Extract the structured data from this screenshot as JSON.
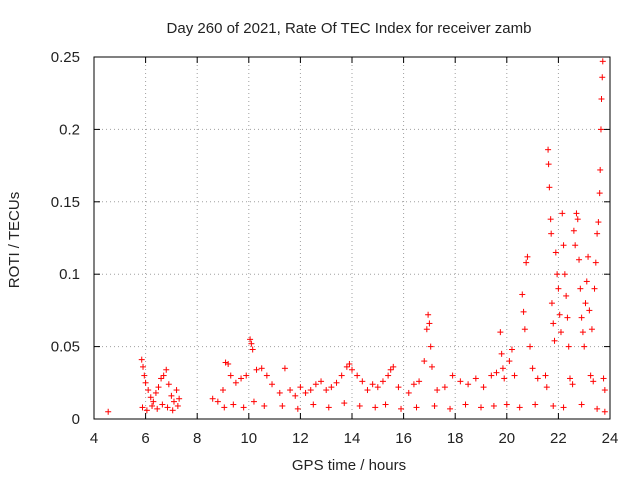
{
  "chart_data": {
    "type": "scatter",
    "title": "Day 260 of 2021, Rate Of TEC Index for receiver zamb",
    "xlabel": "GPS time / hours",
    "ylabel": "ROTI / TECUs",
    "xlim": [
      4,
      24
    ],
    "ylim": [
      0,
      0.25
    ],
    "x_ticks": [
      4,
      6,
      8,
      10,
      12,
      14,
      16,
      18,
      20,
      22,
      24
    ],
    "x_tick_labels": [
      "4",
      "6",
      "8",
      "10",
      "12",
      "14",
      "16",
      "18",
      "20",
      "22",
      "24"
    ],
    "y_ticks": [
      0,
      0.05,
      0.1,
      0.15,
      0.2,
      0.25
    ],
    "y_tick_labels": [
      "0",
      "0.05",
      "0.1",
      "0.15",
      "0.2",
      "0.25"
    ],
    "grid": true,
    "marker": "+",
    "color": "#ff0000",
    "series": [
      {
        "name": "ROTI",
        "points": [
          [
            4.55,
            0.005
          ],
          [
            5.85,
            0.041
          ],
          [
            5.9,
            0.036
          ],
          [
            5.95,
            0.03
          ],
          [
            6.0,
            0.025
          ],
          [
            6.1,
            0.02
          ],
          [
            6.2,
            0.015
          ],
          [
            6.3,
            0.012
          ],
          [
            6.4,
            0.018
          ],
          [
            6.5,
            0.022
          ],
          [
            6.6,
            0.028
          ],
          [
            6.7,
            0.03
          ],
          [
            6.8,
            0.034
          ],
          [
            6.9,
            0.024
          ],
          [
            7.0,
            0.016
          ],
          [
            7.1,
            0.012
          ],
          [
            7.2,
            0.02
          ],
          [
            7.3,
            0.014
          ],
          [
            5.88,
            0.008
          ],
          [
            6.05,
            0.006
          ],
          [
            6.25,
            0.009
          ],
          [
            6.45,
            0.007
          ],
          [
            6.65,
            0.01
          ],
          [
            6.85,
            0.008
          ],
          [
            7.05,
            0.006
          ],
          [
            7.25,
            0.009
          ],
          [
            8.6,
            0.014
          ],
          [
            8.8,
            0.012
          ],
          [
            9.0,
            0.02
          ],
          [
            9.1,
            0.039
          ],
          [
            9.2,
            0.038
          ],
          [
            9.3,
            0.03
          ],
          [
            9.5,
            0.025
          ],
          [
            9.7,
            0.028
          ],
          [
            9.9,
            0.03
          ],
          [
            10.05,
            0.055
          ],
          [
            10.1,
            0.052
          ],
          [
            10.15,
            0.048
          ],
          [
            10.3,
            0.034
          ],
          [
            10.5,
            0.035
          ],
          [
            10.7,
            0.03
          ],
          [
            10.9,
            0.024
          ],
          [
            9.05,
            0.008
          ],
          [
            9.4,
            0.01
          ],
          [
            9.8,
            0.008
          ],
          [
            10.2,
            0.012
          ],
          [
            10.6,
            0.009
          ],
          [
            11.2,
            0.018
          ],
          [
            11.4,
            0.035
          ],
          [
            11.6,
            0.02
          ],
          [
            11.8,
            0.016
          ],
          [
            12.0,
            0.022
          ],
          [
            12.2,
            0.018
          ],
          [
            12.4,
            0.02
          ],
          [
            12.6,
            0.024
          ],
          [
            12.8,
            0.026
          ],
          [
            13.0,
            0.02
          ],
          [
            13.2,
            0.022
          ],
          [
            13.4,
            0.025
          ],
          [
            13.6,
            0.03
          ],
          [
            13.8,
            0.036
          ],
          [
            13.9,
            0.038
          ],
          [
            14.0,
            0.034
          ],
          [
            14.2,
            0.03
          ],
          [
            14.4,
            0.026
          ],
          [
            14.6,
            0.02
          ],
          [
            14.8,
            0.024
          ],
          [
            15.0,
            0.022
          ],
          [
            15.2,
            0.026
          ],
          [
            15.4,
            0.03
          ],
          [
            15.5,
            0.034
          ],
          [
            15.6,
            0.036
          ],
          [
            15.8,
            0.022
          ],
          [
            11.3,
            0.009
          ],
          [
            11.9,
            0.007
          ],
          [
            12.5,
            0.01
          ],
          [
            13.1,
            0.008
          ],
          [
            13.7,
            0.011
          ],
          [
            14.3,
            0.009
          ],
          [
            14.9,
            0.008
          ],
          [
            15.3,
            0.01
          ],
          [
            15.9,
            0.007
          ],
          [
            16.2,
            0.018
          ],
          [
            16.4,
            0.024
          ],
          [
            16.6,
            0.026
          ],
          [
            16.8,
            0.04
          ],
          [
            16.9,
            0.062
          ],
          [
            16.95,
            0.072
          ],
          [
            17.0,
            0.066
          ],
          [
            17.05,
            0.05
          ],
          [
            17.1,
            0.036
          ],
          [
            17.3,
            0.02
          ],
          [
            17.6,
            0.022
          ],
          [
            17.9,
            0.03
          ],
          [
            18.2,
            0.026
          ],
          [
            18.5,
            0.024
          ],
          [
            18.8,
            0.028
          ],
          [
            19.1,
            0.022
          ],
          [
            19.4,
            0.03
          ],
          [
            19.6,
            0.032
          ],
          [
            16.5,
            0.008
          ],
          [
            17.2,
            0.009
          ],
          [
            17.8,
            0.007
          ],
          [
            18.4,
            0.01
          ],
          [
            19.0,
            0.008
          ],
          [
            19.5,
            0.009
          ],
          [
            19.75,
            0.06
          ],
          [
            19.8,
            0.045
          ],
          [
            19.85,
            0.035
          ],
          [
            19.9,
            0.028
          ],
          [
            20.1,
            0.04
          ],
          [
            20.2,
            0.048
          ],
          [
            20.3,
            0.03
          ],
          [
            20.6,
            0.086
          ],
          [
            20.65,
            0.074
          ],
          [
            20.7,
            0.062
          ],
          [
            20.8,
            0.112
          ],
          [
            20.75,
            0.108
          ],
          [
            20.9,
            0.05
          ],
          [
            21.0,
            0.035
          ],
          [
            21.2,
            0.028
          ],
          [
            21.6,
            0.186
          ],
          [
            21.62,
            0.176
          ],
          [
            21.65,
            0.16
          ],
          [
            21.7,
            0.138
          ],
          [
            21.72,
            0.128
          ],
          [
            21.75,
            0.08
          ],
          [
            21.8,
            0.066
          ],
          [
            21.85,
            0.054
          ],
          [
            21.9,
            0.115
          ],
          [
            21.95,
            0.1
          ],
          [
            22.0,
            0.09
          ],
          [
            22.05,
            0.072
          ],
          [
            22.1,
            0.06
          ],
          [
            22.15,
            0.142
          ],
          [
            22.2,
            0.12
          ],
          [
            22.25,
            0.1
          ],
          [
            22.3,
            0.085
          ],
          [
            22.35,
            0.07
          ],
          [
            22.4,
            0.05
          ],
          [
            22.6,
            0.13
          ],
          [
            22.65,
            0.12
          ],
          [
            22.7,
            0.142
          ],
          [
            22.75,
            0.138
          ],
          [
            22.8,
            0.11
          ],
          [
            22.85,
            0.09
          ],
          [
            22.9,
            0.07
          ],
          [
            22.95,
            0.06
          ],
          [
            23.0,
            0.05
          ],
          [
            23.05,
            0.08
          ],
          [
            23.1,
            0.095
          ],
          [
            23.15,
            0.112
          ],
          [
            23.2,
            0.075
          ],
          [
            23.3,
            0.062
          ],
          [
            23.4,
            0.09
          ],
          [
            23.45,
            0.108
          ],
          [
            23.5,
            0.128
          ],
          [
            23.55,
            0.136
          ],
          [
            23.6,
            0.156
          ],
          [
            23.62,
            0.172
          ],
          [
            23.65,
            0.2
          ],
          [
            23.67,
            0.221
          ],
          [
            23.7,
            0.236
          ],
          [
            23.72,
            0.247
          ],
          [
            23.75,
            0.028
          ],
          [
            23.8,
            0.02
          ],
          [
            21.5,
            0.03
          ],
          [
            21.55,
            0.022
          ],
          [
            22.45,
            0.028
          ],
          [
            22.55,
            0.024
          ],
          [
            23.25,
            0.03
          ],
          [
            23.35,
            0.026
          ],
          [
            20.0,
            0.01
          ],
          [
            20.5,
            0.008
          ],
          [
            21.1,
            0.01
          ],
          [
            21.8,
            0.009
          ],
          [
            22.2,
            0.008
          ],
          [
            22.9,
            0.01
          ],
          [
            23.5,
            0.007
          ],
          [
            23.8,
            0.005
          ]
        ]
      }
    ]
  }
}
